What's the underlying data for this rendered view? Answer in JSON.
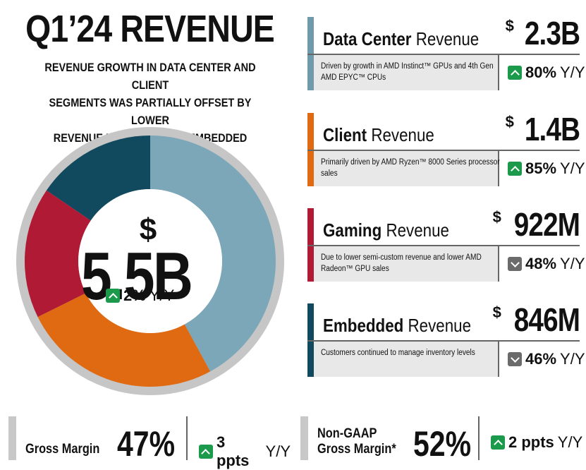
{
  "header": {
    "title": "Q1’24 REVENUE",
    "subtitle": "REVENUE GROWTH IN DATA CENTER AND CLIENT\nSEGMENTS WAS PARTIALLY OFFSET BY LOWER\nREVENUE IN GAMING AND EMBEDDED SEGMENTS"
  },
  "total": {
    "currency": "$",
    "amount": "5.5B",
    "change": "2%",
    "change_suffix": "Y/Y",
    "direction": "up"
  },
  "chart_data": {
    "type": "pie",
    "categories": [
      "Data Center",
      "Client",
      "Gaming",
      "Embedded"
    ],
    "values": [
      2.3,
      1.4,
      0.922,
      0.846
    ],
    "colors": [
      "#7ca7b8",
      "#e06a12",
      "#b11a35",
      "#114a5e"
    ]
  },
  "segments": [
    {
      "name_bold": "Data Center",
      "name_rest": " Revenue",
      "currency": "$",
      "amount": "2.3B",
      "desc": "Driven by growth in AMD Instinct™ GPUs and 4th Gen AMD EPYC™ CPUs",
      "change": "80%",
      "change_suffix": "Y/Y",
      "direction": "up",
      "color": "#6e9aab"
    },
    {
      "name_bold": "Client",
      "name_rest": " Revenue",
      "currency": "$",
      "amount": "1.4B",
      "desc": "Primarily driven by AMD Ryzen™ 8000 Series processor sales",
      "change": "85%",
      "change_suffix": "Y/Y",
      "direction": "up",
      "color": "#e06a12"
    },
    {
      "name_bold": "Gaming",
      "name_rest": " Revenue",
      "currency": "$",
      "amount": "922M",
      "desc": "Due to lower semi-custom revenue and lower AMD Radeon™ GPU sales",
      "change": "48%",
      "change_suffix": "Y/Y",
      "direction": "down",
      "color": "#b11a35"
    },
    {
      "name_bold": "Embedded",
      "name_rest": " Revenue",
      "currency": "$",
      "amount": "846M",
      "desc": "Customers continued to manage inventory levels",
      "change": "46%",
      "change_suffix": "Y/Y",
      "direction": "down",
      "color": "#114a5e"
    }
  ],
  "margins": [
    {
      "label": "Gross Margin",
      "value": "47%",
      "change": "3 ppts",
      "change_suffix": "Y/Y",
      "direction": "up"
    },
    {
      "label": "Non-GAAP\nGross Margin*",
      "value": "52%",
      "change": "2 ppts",
      "change_suffix": "Y/Y",
      "direction": "up"
    }
  ]
}
